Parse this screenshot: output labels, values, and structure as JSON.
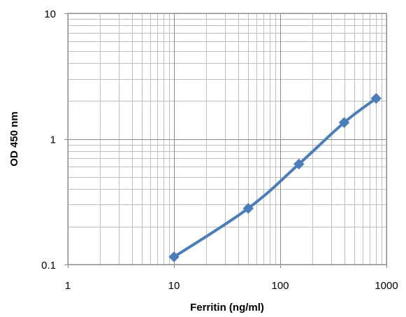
{
  "chart_data": {
    "type": "line",
    "title": "",
    "xlabel": "Ferritin (ng/ml)",
    "ylabel": "OD 450 nm",
    "x_scale": "log",
    "y_scale": "log",
    "xlim": [
      1,
      1000
    ],
    "ylim": [
      0.1,
      10
    ],
    "x_ticks": [
      "1",
      "10",
      "100",
      "1000"
    ],
    "y_ticks": [
      "0.1",
      "1",
      "10"
    ],
    "grid": "major and minor",
    "legend": "none",
    "series": [
      {
        "x": [
          10,
          50,
          150,
          400,
          800
        ],
        "y": [
          0.115,
          0.28,
          0.63,
          1.35,
          2.1
        ],
        "color": "#4a7ebb",
        "marker": "diamond"
      }
    ]
  }
}
